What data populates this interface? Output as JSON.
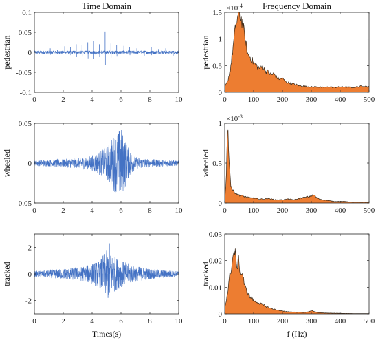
{
  "figure": {
    "time_title": "Time Domain",
    "freq_title": "Frequency Domain",
    "time_xlabel": "Times(s)",
    "freq_xlabel": "f (Hz)"
  },
  "chart_data": [
    {
      "type": "line",
      "domain": "time",
      "ylabel": "pedestrian",
      "xlim": [
        0,
        10
      ],
      "ylim": [
        -0.1,
        0.1
      ],
      "xticks": [
        0,
        2,
        4,
        6,
        8,
        10
      ],
      "xtick_labels": [
        "0",
        "2",
        "4",
        "6",
        "8",
        "10"
      ],
      "yticks": [
        -0.1,
        -0.05,
        0,
        0.05,
        0.1
      ],
      "ytick_labels": [
        "-0.1",
        "-0.05",
        "0",
        "0.05",
        "0.1"
      ],
      "exponent": "",
      "color": "#4472C4",
      "x": [
        0.0,
        0.5,
        1.0,
        1.5,
        2.0,
        2.5,
        3.0,
        3.5,
        4.0,
        4.5,
        5.0,
        5.5,
        6.0,
        6.5,
        7.0,
        7.5,
        8.0,
        8.5,
        9.0,
        9.5,
        10.0
      ],
      "envelope": [
        0.004,
        0.004,
        0.004,
        0.004,
        0.004,
        0.004,
        0.004,
        0.004,
        0.004,
        0.004,
        0.004,
        0.004,
        0.004,
        0.004,
        0.004,
        0.004,
        0.004,
        0.004,
        0.004,
        0.004,
        0.004
      ],
      "spikes": [
        {
          "x": 0.6,
          "amp": 0.008
        },
        {
          "x": 1.1,
          "amp": 0.01
        },
        {
          "x": 1.6,
          "amp": 0.006
        },
        {
          "x": 2.1,
          "amp": 0.015
        },
        {
          "x": 2.5,
          "amp": 0.012
        },
        {
          "x": 2.9,
          "amp": 0.02
        },
        {
          "x": 3.3,
          "amp": 0.018
        },
        {
          "x": 3.7,
          "amp": 0.025
        },
        {
          "x": 4.1,
          "amp": 0.028
        },
        {
          "x": 4.5,
          "amp": 0.02
        },
        {
          "x": 4.9,
          "amp": 0.052
        },
        {
          "x": 5.3,
          "amp": 0.022
        },
        {
          "x": 5.7,
          "amp": 0.018
        },
        {
          "x": 6.2,
          "amp": 0.016
        },
        {
          "x": 6.6,
          "amp": 0.012
        },
        {
          "x": 7.1,
          "amp": 0.01
        },
        {
          "x": 7.6,
          "amp": 0.014
        },
        {
          "x": 8.1,
          "amp": 0.012
        },
        {
          "x": 8.6,
          "amp": 0.008
        },
        {
          "x": 9.1,
          "amp": 0.01
        },
        {
          "x": 9.6,
          "amp": 0.014
        }
      ]
    },
    {
      "type": "area",
      "domain": "frequency",
      "ylabel": "pedestrian",
      "xlim": [
        0,
        500
      ],
      "ylim": [
        0,
        1.5
      ],
      "xticks": [
        0,
        100,
        200,
        300,
        400,
        500
      ],
      "xtick_labels": [
        "0",
        "100",
        "200",
        "300",
        "400",
        "500"
      ],
      "yticks": [
        0,
        0.5,
        1,
        1.5
      ],
      "ytick_labels": [
        "0",
        "0.5",
        "1",
        "1.5"
      ],
      "exponent": "-4",
      "color": "#ED7D31",
      "x": [
        0,
        10,
        20,
        30,
        40,
        50,
        60,
        70,
        80,
        90,
        100,
        110,
        120,
        130,
        140,
        150,
        160,
        170,
        180,
        190,
        200,
        210,
        220,
        230,
        240,
        250,
        260,
        280,
        300,
        320,
        340,
        360,
        380,
        400,
        420,
        440,
        460,
        480,
        500
      ],
      "y": [
        0.1,
        0.2,
        0.45,
        0.9,
        1.3,
        1.5,
        1.35,
        1.0,
        0.7,
        0.65,
        0.55,
        0.5,
        0.45,
        0.48,
        0.4,
        0.38,
        0.32,
        0.35,
        0.28,
        0.25,
        0.26,
        0.2,
        0.18,
        0.17,
        0.15,
        0.14,
        0.12,
        0.11,
        0.1,
        0.1,
        0.09,
        0.1,
        0.09,
        0.1,
        0.1,
        0.09,
        0.1,
        0.12,
        0.1
      ]
    },
    {
      "type": "line",
      "domain": "time",
      "ylabel": "wheeled",
      "xlim": [
        0,
        10
      ],
      "ylim": [
        -0.05,
        0.05
      ],
      "xticks": [
        0,
        2,
        4,
        6,
        8,
        10
      ],
      "xtick_labels": [
        "0",
        "2",
        "4",
        "6",
        "8",
        "10"
      ],
      "yticks": [
        -0.05,
        0,
        0.05
      ],
      "ytick_labels": [
        "-0.05",
        "0",
        "0.05"
      ],
      "exponent": "",
      "color": "#4472C4",
      "x": [
        0.0,
        0.5,
        1.0,
        1.5,
        2.0,
        2.5,
        3.0,
        3.5,
        4.0,
        4.5,
        5.0,
        5.5,
        6.0,
        6.5,
        7.0,
        7.5,
        8.0,
        8.5,
        9.0,
        9.5,
        10.0
      ],
      "envelope": [
        0.003,
        0.004,
        0.004,
        0.005,
        0.005,
        0.006,
        0.006,
        0.008,
        0.01,
        0.015,
        0.02,
        0.035,
        0.045,
        0.02,
        0.008,
        0.006,
        0.005,
        0.005,
        0.004,
        0.004,
        0.003
      ],
      "spikes": []
    },
    {
      "type": "area",
      "domain": "frequency",
      "ylabel": "wheeled",
      "xlim": [
        0,
        500
      ],
      "ylim": [
        0,
        1
      ],
      "xticks": [
        0,
        100,
        200,
        300,
        400,
        500
      ],
      "xtick_labels": [
        "0",
        "100",
        "200",
        "300",
        "400",
        "500"
      ],
      "yticks": [
        0,
        0.5,
        1
      ],
      "ytick_labels": [
        "0",
        "0.5",
        "1"
      ],
      "exponent": "-3",
      "color": "#ED7D31",
      "x": [
        0,
        5,
        10,
        15,
        20,
        25,
        30,
        40,
        50,
        60,
        80,
        100,
        120,
        140,
        150,
        160,
        180,
        200,
        220,
        240,
        260,
        280,
        300,
        310,
        320,
        340,
        360,
        380,
        400,
        420,
        440,
        460,
        480,
        500
      ],
      "y": [
        0.02,
        0.3,
        0.97,
        0.6,
        0.25,
        0.18,
        0.15,
        0.12,
        0.1,
        0.09,
        0.07,
        0.06,
        0.05,
        0.05,
        0.06,
        0.05,
        0.04,
        0.04,
        0.05,
        0.04,
        0.06,
        0.07,
        0.09,
        0.1,
        0.06,
        0.04,
        0.03,
        0.02,
        0.02,
        0.02,
        0.01,
        0.01,
        0.01,
        0.01
      ]
    },
    {
      "type": "line",
      "domain": "time",
      "ylabel": "tracked",
      "xlim": [
        0,
        10
      ],
      "ylim": [
        -3,
        3
      ],
      "xticks": [
        0,
        2,
        4,
        6,
        8,
        10
      ],
      "xtick_labels": [
        "0",
        "2",
        "4",
        "6",
        "8",
        "10"
      ],
      "yticks": [
        -2,
        0,
        2
      ],
      "ytick_labels": [
        "-2",
        "0",
        "2"
      ],
      "exponent": "",
      "color": "#4472C4",
      "x": [
        0.0,
        0.5,
        1.0,
        1.5,
        2.0,
        2.5,
        3.0,
        3.5,
        4.0,
        4.5,
        5.0,
        5.5,
        6.0,
        6.5,
        7.0,
        7.5,
        8.0,
        8.5,
        9.0,
        9.5,
        10.0
      ],
      "envelope": [
        0.2,
        0.25,
        0.3,
        0.35,
        0.4,
        0.45,
        0.5,
        0.6,
        0.8,
        1.0,
        1.8,
        1.4,
        1.0,
        0.8,
        0.6,
        0.5,
        0.4,
        0.35,
        0.3,
        0.25,
        0.2
      ],
      "spikes": [
        {
          "x": 5.2,
          "amp": 2.3
        },
        {
          "x": 5.1,
          "amp": -1.8
        }
      ]
    },
    {
      "type": "area",
      "domain": "frequency",
      "ylabel": "tracked",
      "xlim": [
        0,
        500
      ],
      "ylim": [
        0,
        0.03
      ],
      "xticks": [
        0,
        100,
        200,
        300,
        400,
        500
      ],
      "xtick_labels": [
        "0",
        "100",
        "200",
        "300",
        "400",
        "500"
      ],
      "yticks": [
        0,
        0.01,
        0.02,
        0.03
      ],
      "ytick_labels": [
        "0",
        "0.01",
        "0.02",
        "0.03"
      ],
      "exponent": "",
      "color": "#ED7D31",
      "x": [
        0,
        10,
        20,
        30,
        35,
        40,
        50,
        55,
        60,
        70,
        80,
        90,
        100,
        120,
        140,
        160,
        180,
        200,
        220,
        250,
        280,
        300,
        320,
        350,
        400,
        450,
        500
      ],
      "y": [
        0.002,
        0.008,
        0.016,
        0.022,
        0.024,
        0.018,
        0.02,
        0.014,
        0.016,
        0.01,
        0.008,
        0.006,
        0.005,
        0.004,
        0.003,
        0.002,
        0.0015,
        0.001,
        0.0008,
        0.0006,
        0.0005,
        0.0012,
        0.0005,
        0.0003,
        0.0002,
        0.0001,
        0.0001
      ]
    }
  ]
}
